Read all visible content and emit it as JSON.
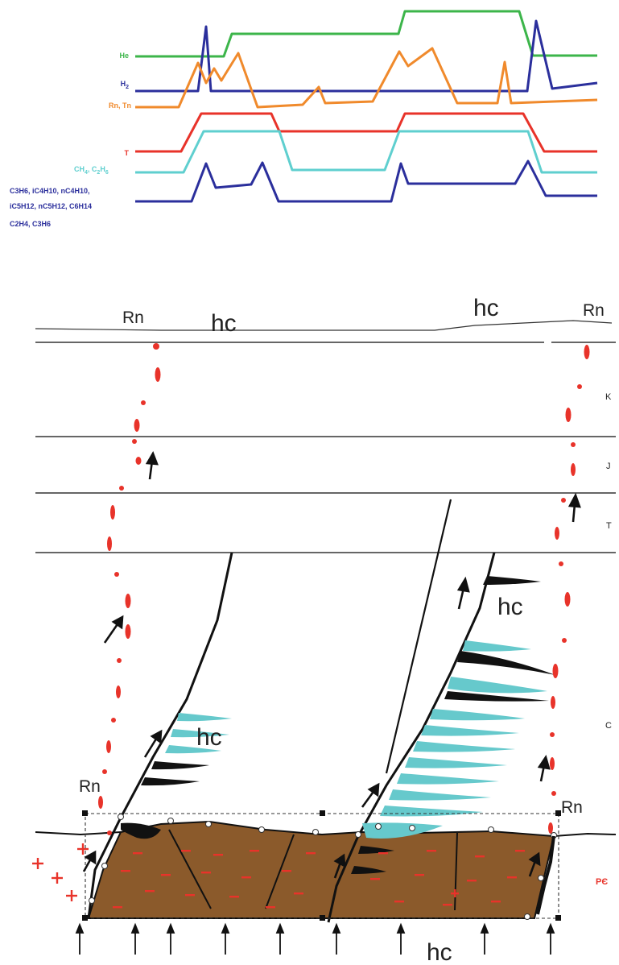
{
  "profile_labels": {
    "he": "He",
    "h2": "H",
    "h2_sub": "2",
    "rn_tn": "Rn, Tn",
    "t": "T",
    "ch4_c2h6": "CH",
    "ch4_sub": "4",
    "ch4_mid": ", C",
    "c2h6_sub1": "2",
    "c2h6_mid": "H",
    "c2h6_sub2": "6",
    "hc_line1": "C3H6, iC4H10, nC4H10,",
    "hc_line2": "iC5H12, nC5H12, C6H14",
    "hc_line3": "C2H4, C3H6"
  },
  "section_labels": {
    "rn_top_left": "Rn",
    "hc_top_left": "hc",
    "hc_top_right": "hc",
    "rn_top_right": "Rn",
    "hc_right_fault": "hc",
    "hc_left_fault": "hc",
    "rn_mid_left": "Rn",
    "rn_mid_right": "Rn",
    "hc_bottom": "hc"
  },
  "strata": {
    "k": "K",
    "j": "J",
    "t": "T",
    "c": "C",
    "pc": "PЄ"
  },
  "colors": {
    "he": "#3cb54a",
    "h2": "#2b2f9c",
    "rn_tn": "#f08a2c",
    "t": "#e8332a",
    "ch4": "#5fcfcf",
    "hc_heavy": "#2b2f9c",
    "radon_dots": "#e8332a",
    "basement": "#8b5a2b",
    "hc_lens_cyan": "#66c9cc",
    "hc_lens_black": "#111111"
  }
}
